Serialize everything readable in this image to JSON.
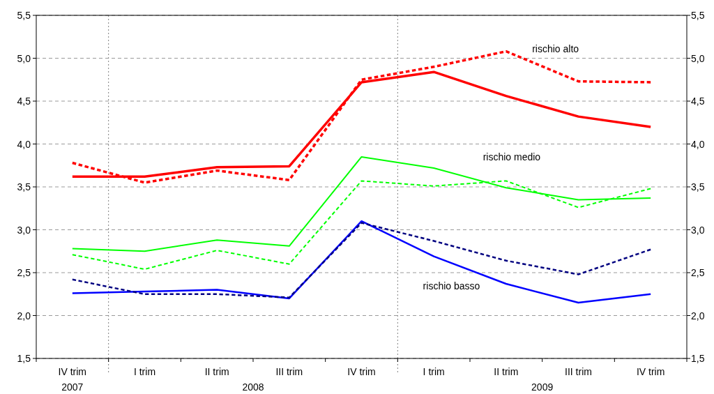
{
  "chart_data": {
    "type": "line",
    "categories": [
      "IV trim",
      "I trim",
      "II trim",
      "III trim",
      "IV trim",
      "I trim",
      "II trim",
      "III trim",
      "IV trim"
    ],
    "series": [
      {
        "color": "#ff0000",
        "line_style": "solid",
        "values": [
          3.62,
          3.62,
          3.73,
          3.74,
          4.72,
          4.84,
          4.56,
          4.32,
          4.2
        ]
      },
      {
        "name": "rischio alto",
        "color": "#ff0000",
        "line_style": "dashed",
        "values": [
          3.78,
          3.55,
          3.69,
          3.58,
          4.75,
          4.9,
          5.08,
          4.73,
          4.72
        ]
      },
      {
        "name": "rischio medio",
        "color": "#00ff00",
        "line_style": "solid",
        "values": [
          2.78,
          2.75,
          2.88,
          2.81,
          3.85,
          3.72,
          3.49,
          3.35,
          3.37
        ]
      },
      {
        "color": "#00ff00",
        "line_style": "dashed",
        "values": [
          2.71,
          2.54,
          2.76,
          2.6,
          3.57,
          3.51,
          3.57,
          3.26,
          3.48
        ]
      },
      {
        "name": "rischio basso",
        "color": "#0000ff",
        "line_style": "solid",
        "values": [
          2.26,
          2.28,
          2.3,
          2.2,
          3.1,
          2.69,
          2.37,
          2.15,
          2.25
        ]
      },
      {
        "color": "#000080",
        "line_style": "dashed",
        "values": [
          2.42,
          2.25,
          2.25,
          2.21,
          3.08,
          2.87,
          2.64,
          2.48,
          2.77
        ]
      }
    ],
    "ylim": [
      1.5,
      5.5
    ],
    "yticks": [
      {
        "value": 1.5,
        "label": "1,5"
      },
      {
        "value": 2,
        "label": "2,0"
      },
      {
        "value": 2.5,
        "label": "2,5"
      },
      {
        "value": 3,
        "label": "3,0"
      },
      {
        "value": 3.5,
        "label": "3,5"
      },
      {
        "value": 4,
        "label": "4,0"
      },
      {
        "value": 4.5,
        "label": "4,5"
      },
      {
        "value": 5,
        "label": "5,0"
      },
      {
        "value": 5.5,
        "label": "5,5"
      }
    ],
    "y2lim": [
      1.5,
      5.5
    ],
    "y2ticks": [
      {
        "value": 1.5,
        "label": "1,5"
      },
      {
        "value": 2,
        "label": "2,0"
      },
      {
        "value": 2.5,
        "label": "2,5"
      },
      {
        "value": 3,
        "label": "3,0"
      },
      {
        "value": 3.5,
        "label": "3,5"
      },
      {
        "value": 4,
        "label": "4,0"
      },
      {
        "value": 4.5,
        "label": "4,5"
      },
      {
        "value": 5,
        "label": "5,0"
      },
      {
        "value": 5.5,
        "label": "5,5"
      }
    ],
    "grid": "y",
    "annotations": [
      "2007",
      "2008",
      "2009"
    ]
  }
}
